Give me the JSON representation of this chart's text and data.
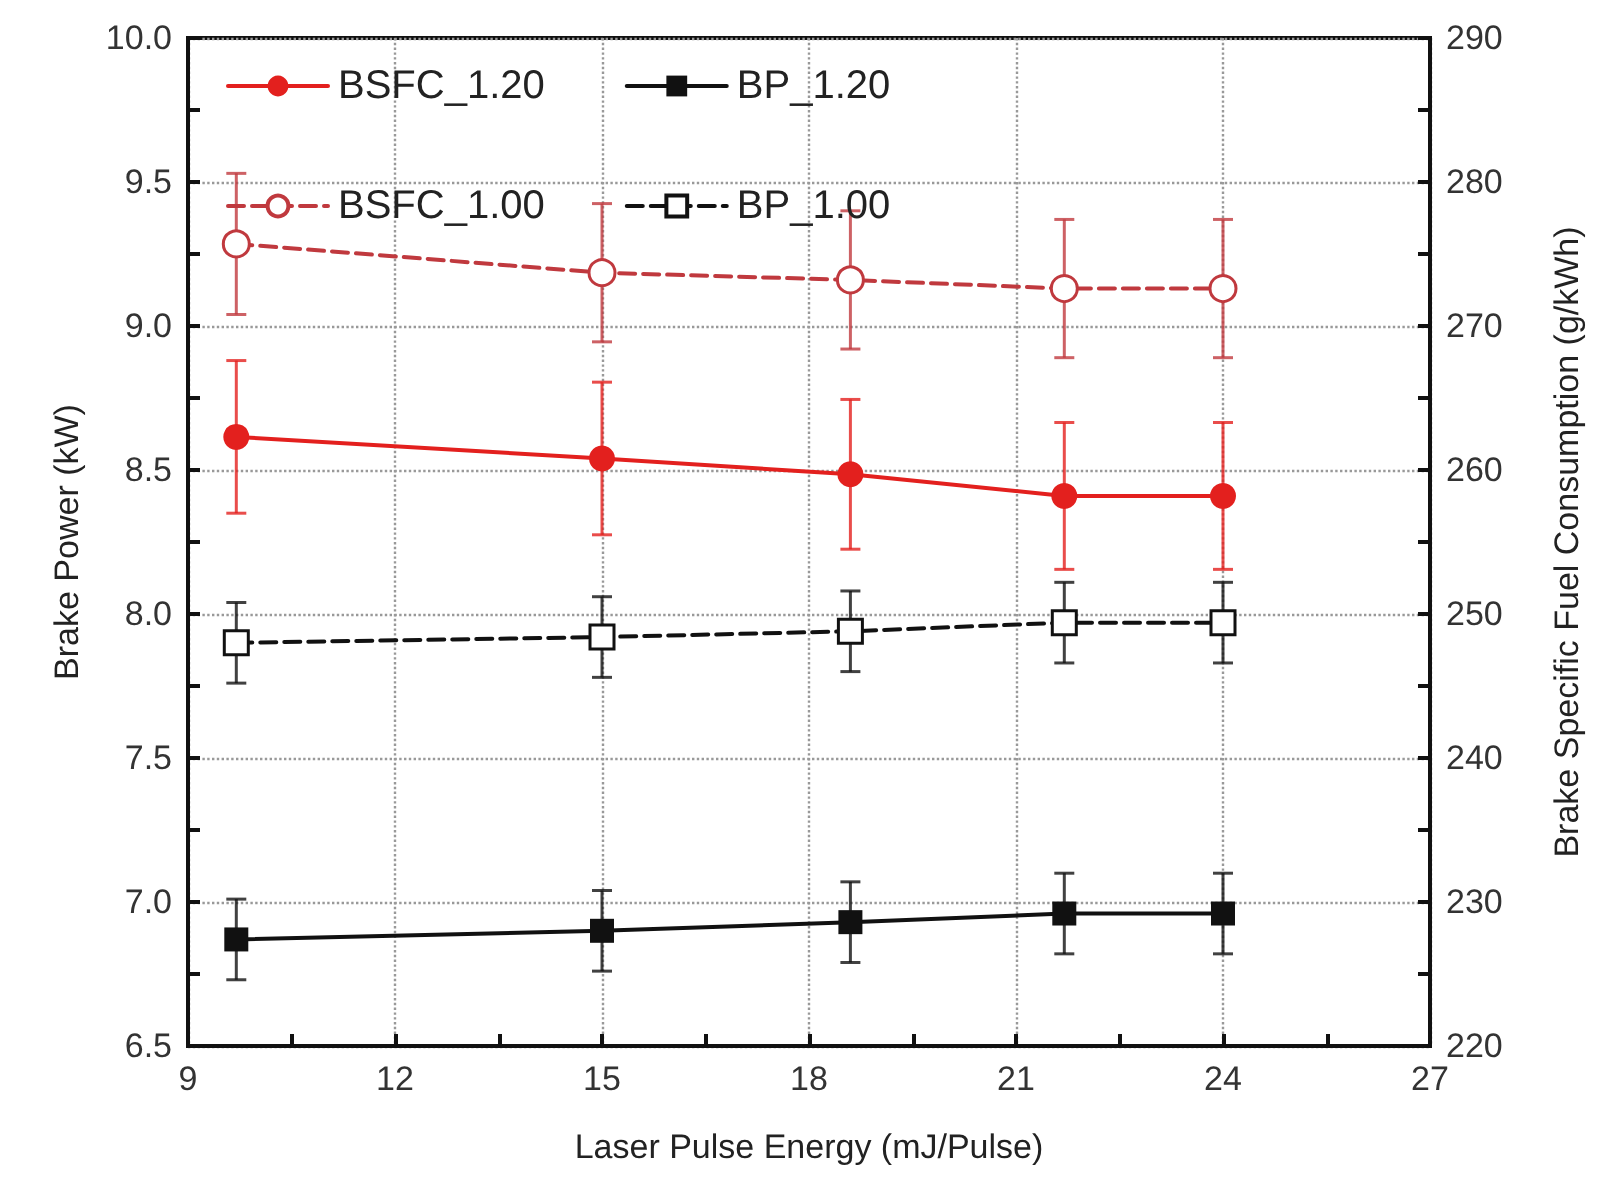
{
  "chart_data": {
    "type": "line",
    "xlabel": "Laser Pulse Energy (mJ/Pulse)",
    "ylabel": "Brake Power (kW)",
    "y2label": "Brake Specific Fuel Consumption (g/kWh)",
    "x": [
      9.7,
      15,
      18.6,
      21.7,
      24
    ],
    "xlim": [
      9,
      27
    ],
    "xticks": [
      9,
      {
        "value": 10.5,
        "label": null
      },
      12,
      {
        "value": 13.5,
        "label": null
      },
      15,
      {
        "value": 16.5,
        "label": null
      },
      18,
      {
        "value": 19.5,
        "label": null
      },
      21,
      {
        "value": 22.5,
        "label": null
      },
      24,
      {
        "value": 25.5,
        "label": null
      },
      27
    ],
    "ylim": [
      6.5,
      10.0
    ],
    "yticks": [
      {
        "value": 6.5,
        "label": "6.5"
      },
      {
        "value": 6.75,
        "label": null
      },
      {
        "value": 7.0,
        "label": "7.0"
      },
      {
        "value": 7.25,
        "label": null
      },
      {
        "value": 7.5,
        "label": "7.5"
      },
      {
        "value": 7.75,
        "label": null
      },
      {
        "value": 8.0,
        "label": "8.0"
      },
      {
        "value": 8.25,
        "label": null
      },
      {
        "value": 8.5,
        "label": "8.5"
      },
      {
        "value": 8.75,
        "label": null
      },
      {
        "value": 9.0,
        "label": "9.0"
      },
      {
        "value": 9.25,
        "label": null
      },
      {
        "value": 9.5,
        "label": "9.5"
      },
      {
        "value": 9.75,
        "label": null
      },
      {
        "value": 10.0,
        "label": "10.0"
      }
    ],
    "y2lim": [
      220,
      290
    ],
    "y2ticks": [
      220,
      {
        "value": 225,
        "label": null
      },
      230,
      {
        "value": 235,
        "label": null
      },
      240,
      {
        "value": 245,
        "label": null
      },
      250,
      {
        "value": 255,
        "label": null
      },
      260,
      {
        "value": 265,
        "label": null
      },
      270,
      {
        "value": 275,
        "label": null
      },
      280,
      {
        "value": 285,
        "label": null
      },
      290
    ],
    "grid": true,
    "legend": "top left",
    "series": [
      {
        "name": "BSFC_1.20",
        "color": "#e3201e",
        "axis": "y2",
        "marker": "circle",
        "line_style": "solid",
        "values": [
          262.3,
          260.8,
          259.7,
          258.2,
          258.2
        ],
        "errors": [
          5.3,
          5.3,
          5.2,
          5.1,
          5.1
        ]
      },
      {
        "name": "BP_1.20",
        "color": "#111111",
        "marker": "square",
        "line_style": "solid",
        "values": [
          6.87,
          6.9,
          6.93,
          6.96,
          6.96
        ],
        "errors": [
          0.14,
          0.14,
          0.14,
          0.14,
          0.14
        ]
      },
      {
        "name": "BSFC_1.00",
        "color": "#c0393e",
        "axis": "y2",
        "marker": "circle",
        "line_style": "dashed",
        "values": [
          275.7,
          273.7,
          273.2,
          272.6,
          272.6
        ],
        "errors": [
          4.9,
          4.8,
          4.8,
          4.8,
          4.8
        ]
      },
      {
        "name": "BP_1.00",
        "color": "#111111",
        "marker": "square",
        "line_style": "dashed",
        "values": [
          7.9,
          7.92,
          7.94,
          7.97,
          7.97
        ],
        "errors": [
          0.14,
          0.14,
          0.14,
          0.14,
          0.14
        ]
      }
    ]
  }
}
